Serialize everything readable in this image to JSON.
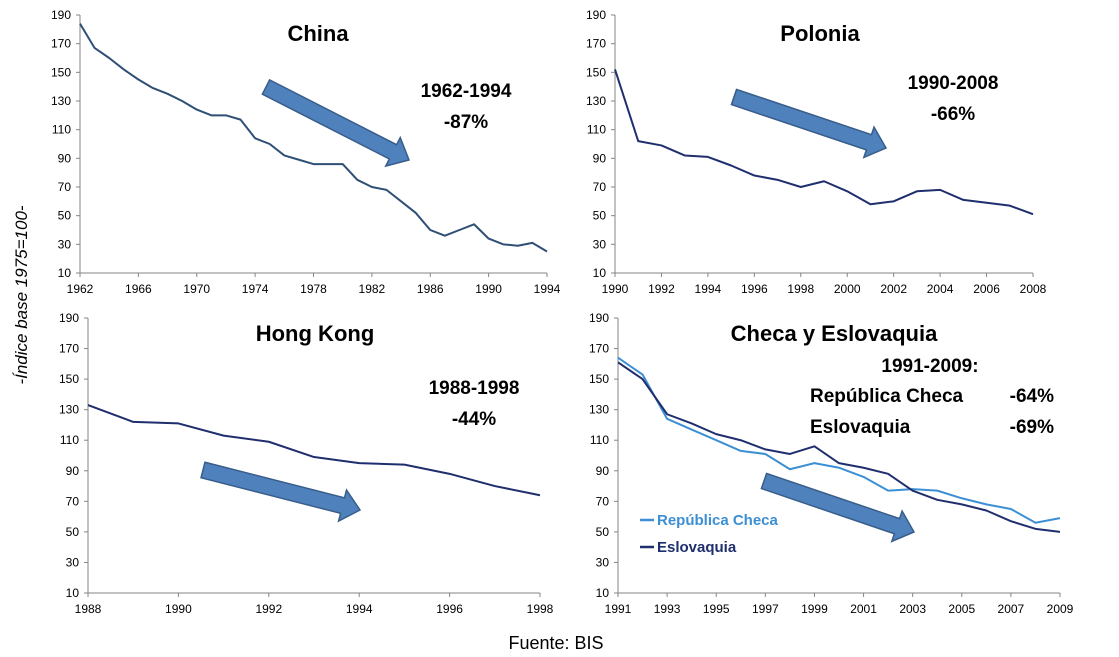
{
  "figure": {
    "ylabel": "-Índice base 1975=100-",
    "source": "Fuente: BIS"
  },
  "chart_data": [
    {
      "type": "line",
      "title": "China",
      "annotation": [
        "1962-1994",
        "-87%"
      ],
      "xlim": [
        1962,
        1994
      ],
      "xticks": [
        1962,
        1966,
        1970,
        1974,
        1978,
        1982,
        1986,
        1990,
        1994
      ],
      "ylim": [
        10,
        190
      ],
      "yticks": [
        10,
        30,
        50,
        70,
        90,
        110,
        130,
        150,
        170,
        190
      ],
      "trend_arrow": true,
      "series": [
        {
          "color": "#2f4f75",
          "x": [
            1962,
            1963,
            1964,
            1965,
            1966,
            1967,
            1968,
            1969,
            1970,
            1971,
            1972,
            1973,
            1974,
            1975,
            1976,
            1977,
            1978,
            1979,
            1980,
            1981,
            1982,
            1983,
            1984,
            1985,
            1986,
            1987,
            1988,
            1989,
            1990,
            1991,
            1992,
            1993,
            1994
          ],
          "y": [
            184,
            167,
            160,
            152,
            145,
            139,
            135,
            130,
            124,
            120,
            120,
            117,
            104,
            100,
            92,
            89,
            86,
            86,
            86,
            75,
            70,
            68,
            60,
            52,
            40,
            36,
            40,
            44,
            34,
            30,
            29,
            31,
            25
          ]
        }
      ]
    },
    {
      "type": "line",
      "title": "Polonia",
      "annotation": [
        "1990-2008",
        "-66%"
      ],
      "xlim": [
        1990,
        2008
      ],
      "xticks": [
        1990,
        1992,
        1994,
        1996,
        1998,
        2000,
        2002,
        2004,
        2006,
        2008
      ],
      "ylim": [
        10,
        190
      ],
      "yticks": [
        10,
        30,
        50,
        70,
        90,
        110,
        130,
        150,
        170,
        190
      ],
      "trend_arrow": true,
      "series": [
        {
          "color": "#1f2f6e",
          "x": [
            1990,
            1991,
            1992,
            1993,
            1994,
            1995,
            1996,
            1997,
            1998,
            1999,
            2000,
            2001,
            2002,
            2003,
            2004,
            2005,
            2006,
            2007,
            2008
          ],
          "y": [
            152,
            102,
            99,
            92,
            91,
            85,
            78,
            75,
            70,
            74,
            67,
            58,
            60,
            67,
            68,
            61,
            59,
            57,
            51
          ]
        }
      ]
    },
    {
      "type": "line",
      "title": "Hong Kong",
      "annotation": [
        "1988-1998",
        "-44%"
      ],
      "xlim": [
        1988,
        1998
      ],
      "xticks": [
        1988,
        1990,
        1992,
        1994,
        1996,
        1998
      ],
      "ylim": [
        10,
        190
      ],
      "yticks": [
        10,
        30,
        50,
        70,
        90,
        110,
        130,
        150,
        170,
        190
      ],
      "trend_arrow": true,
      "series": [
        {
          "color": "#1f2f6e",
          "x": [
            1988,
            1989,
            1990,
            1991,
            1992,
            1993,
            1994,
            1995,
            1996,
            1997,
            1998
          ],
          "y": [
            133,
            122,
            121,
            113,
            109,
            99,
            95,
            94,
            88,
            80,
            74
          ]
        }
      ]
    },
    {
      "type": "line",
      "title": "Checa y Eslovaquia",
      "annotation": [
        "1991-2009:",
        "República Checa",
        "-64%",
        "Eslovaquia",
        "-69%"
      ],
      "xlim": [
        1991,
        2009
      ],
      "xticks": [
        1991,
        1993,
        1995,
        1997,
        1999,
        2001,
        2003,
        2005,
        2007,
        2009
      ],
      "ylim": [
        10,
        190
      ],
      "yticks": [
        10,
        30,
        50,
        70,
        90,
        110,
        130,
        150,
        170,
        190
      ],
      "trend_arrow": true,
      "legend": "bottom-left",
      "series": [
        {
          "name": "República Checa",
          "color": "#3d8fd4",
          "x": [
            1991,
            1992,
            1993,
            1994,
            1995,
            1996,
            1997,
            1998,
            1999,
            2000,
            2001,
            2002,
            2003,
            2004,
            2005,
            2006,
            2007,
            2008,
            2009
          ],
          "y": [
            164,
            153,
            124,
            117,
            110,
            103,
            101,
            91,
            95,
            92,
            86,
            77,
            78,
            77,
            72,
            68,
            65,
            56,
            59
          ]
        },
        {
          "name": "Eslovaquia",
          "color": "#1f2f6e",
          "x": [
            1991,
            1992,
            1993,
            1994,
            1995,
            1996,
            1997,
            1998,
            1999,
            2000,
            2001,
            2002,
            2003,
            2004,
            2005,
            2006,
            2007,
            2008,
            2009
          ],
          "y": [
            161,
            150,
            127,
            121,
            114,
            110,
            104,
            101,
            106,
            95,
            92,
            88,
            77,
            71,
            68,
            64,
            57,
            52,
            50
          ]
        }
      ]
    }
  ]
}
